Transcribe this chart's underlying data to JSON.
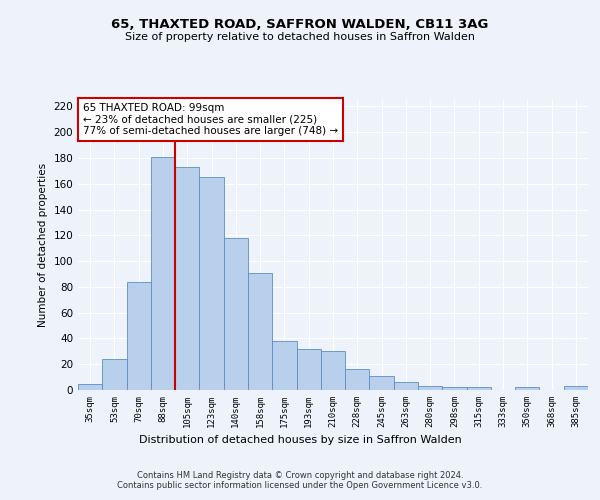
{
  "title1": "65, THAXTED ROAD, SAFFRON WALDEN, CB11 3AG",
  "title2": "Size of property relative to detached houses in Saffron Walden",
  "xlabel": "Distribution of detached houses by size in Saffron Walden",
  "ylabel": "Number of detached properties",
  "categories": [
    "35sqm",
    "53sqm",
    "70sqm",
    "88sqm",
    "105sqm",
    "123sqm",
    "140sqm",
    "158sqm",
    "175sqm",
    "193sqm",
    "210sqm",
    "228sqm",
    "245sqm",
    "263sqm",
    "280sqm",
    "298sqm",
    "315sqm",
    "333sqm",
    "350sqm",
    "368sqm",
    "385sqm"
  ],
  "values": [
    5,
    24,
    84,
    181,
    173,
    165,
    118,
    91,
    38,
    32,
    30,
    16,
    11,
    6,
    3,
    2,
    2,
    0,
    2,
    0,
    3
  ],
  "bar_color": "#b8d0eb",
  "bar_edge_color": "#5b8ec4",
  "vline_x_index": 3,
  "vline_color": "#cc0000",
  "annotation_text": "65 THAXTED ROAD: 99sqm\n← 23% of detached houses are smaller (225)\n77% of semi-detached houses are larger (748) →",
  "annotation_box_color": "#ffffff",
  "annotation_box_edge": "#cc0000",
  "ylim": [
    0,
    225
  ],
  "yticks": [
    0,
    20,
    40,
    60,
    80,
    100,
    120,
    140,
    160,
    180,
    200,
    220
  ],
  "footer": "Contains HM Land Registry data © Crown copyright and database right 2024.\nContains public sector information licensed under the Open Government Licence v3.0.",
  "bg_color": "#edf2fb",
  "grid_color": "#ffffff"
}
